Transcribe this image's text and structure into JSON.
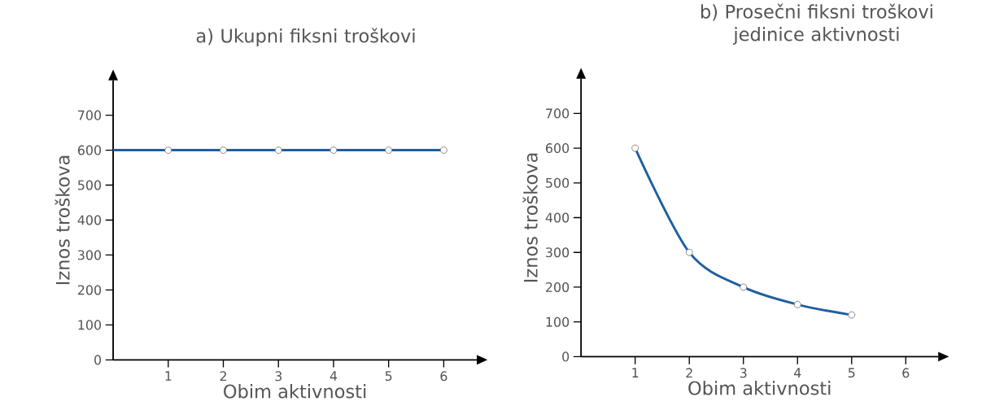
{
  "chart_data": [
    {
      "type": "line",
      "title": "a) Ukupni fiksni troškovi",
      "xlabel": "Obim aktivnosti",
      "ylabel": "Iznos troškova",
      "xlim": [
        0,
        6.6
      ],
      "ylim": [
        0,
        800
      ],
      "xticks": [
        1,
        2,
        3,
        4,
        5,
        6
      ],
      "yticks": [
        0,
        100,
        200,
        300,
        400,
        500,
        600,
        700
      ],
      "series": [
        {
          "x": [
            0,
            6
          ],
          "values": [
            600,
            600
          ],
          "color": "#1f5f9f",
          "marker": "none"
        },
        {
          "type": "scatter",
          "x": [
            1,
            2,
            3,
            4,
            5,
            6
          ],
          "values": [
            600,
            600,
            600,
            600,
            600,
            600
          ],
          "color": "#ffffff",
          "marker": "circle"
        }
      ]
    },
    {
      "type": "line",
      "title": "b) Prosečni fiksni troškovi jedinice aktivnosti",
      "xlabel": "Obim aktivnosti",
      "ylabel": "Iznos troškova",
      "xlim": [
        0,
        6.6
      ],
      "ylim": [
        0,
        800
      ],
      "xticks": [
        1,
        2,
        3,
        4,
        5,
        6
      ],
      "yticks": [
        0,
        100,
        200,
        300,
        400,
        500,
        600,
        700
      ],
      "marker": "circle",
      "series": [
        {
          "x": [
            1,
            2,
            3,
            4,
            5
          ],
          "values": [
            600,
            300,
            200,
            150,
            120
          ],
          "color": "#1f5f9f"
        }
      ]
    }
  ]
}
